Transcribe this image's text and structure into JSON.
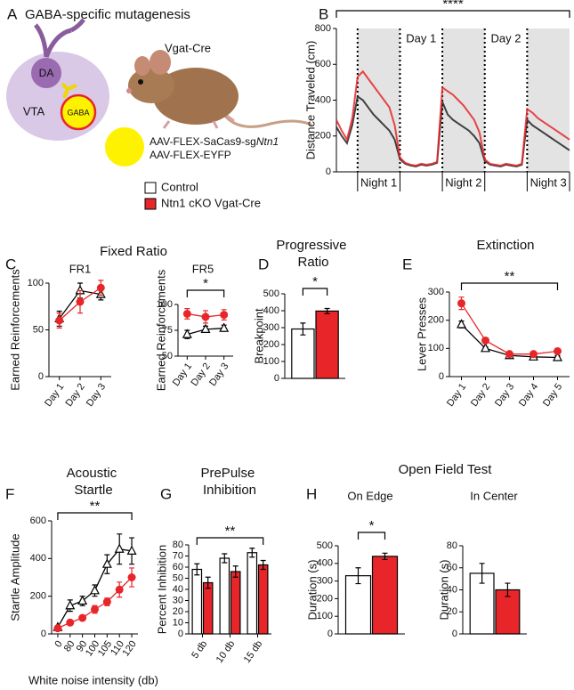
{
  "panel_labels": [
    "A",
    "B",
    "C",
    "D",
    "E",
    "F",
    "G",
    "H"
  ],
  "panel_a": {
    "title": "GABA-specific mutagenesis",
    "cell_1": "DA",
    "region": "VTA",
    "cell_2": "GABA",
    "mouse_line": "Vgat-Cre",
    "vector_1": "AAV-FLEX-SaCas9-sg",
    "vector_1_gene": "Ntn1",
    "vector_2": "AAV-FLEX-EYFP"
  },
  "chart_data": [
    {
      "type": "line",
      "ylabel": "Distance Traveled (cm)",
      "ylim": [
        0,
        800
      ],
      "yticks": [
        0,
        200,
        400,
        600,
        800
      ],
      "significance": "****",
      "periods": [
        {
          "label": "Night 1",
          "start": 4,
          "end": 12,
          "shaded": true
        },
        {
          "label": "Day 1",
          "start": 12,
          "end": 20,
          "shaded": false
        },
        {
          "label": "Night 2",
          "start": 20,
          "end": 28,
          "shaded": true
        },
        {
          "label": "Day 2",
          "start": 28,
          "end": 36,
          "shaded": false
        },
        {
          "label": "Night 3",
          "start": 36,
          "end": 44,
          "shaded": true
        }
      ],
      "series": [
        {
          "name": "Control",
          "color": "#222222",
          "fill": "#ffffff",
          "values": [
            250,
            200,
            160,
            260,
            420,
            400,
            360,
            320,
            290,
            260,
            230,
            180,
            70,
            45,
            35,
            30,
            40,
            35,
            40,
            50,
            390,
            320,
            290,
            270,
            250,
            230,
            200,
            160,
            60,
            40,
            35,
            30,
            40,
            35,
            30,
            40,
            290,
            260,
            240,
            220,
            200,
            180,
            160,
            140,
            120
          ]
        },
        {
          "name": "Ntn1 cKO Vgat-Cre",
          "color": "#e8262a",
          "fill": "#e8262a",
          "values": [
            290,
            230,
            180,
            300,
            530,
            560,
            520,
            480,
            440,
            400,
            360,
            260,
            80,
            50,
            40,
            35,
            45,
            40,
            45,
            55,
            470,
            450,
            430,
            400,
            370,
            330,
            290,
            220,
            70,
            45,
            40,
            35,
            45,
            40,
            35,
            45,
            350,
            330,
            300,
            280,
            260,
            240,
            220,
            200,
            180
          ]
        }
      ]
    },
    {
      "type": "line",
      "title": "Fixed Ratio",
      "subtitle": "FR1",
      "ylabel": "Earned Reinforcements",
      "categories": [
        "Day 1",
        "Day 2",
        "Day 3"
      ],
      "ylim": [
        0,
        100
      ],
      "yticks": [
        0,
        50,
        100
      ],
      "series": [
        {
          "color": "#000000",
          "fill": "#ffffff",
          "marker": "triangle",
          "values": [
            62,
            92,
            88
          ],
          "errors": [
            8,
            8,
            6
          ]
        },
        {
          "color": "#e8262a",
          "fill": "#e8262a",
          "marker": "circle",
          "values": [
            60,
            80,
            95
          ],
          "errors": [
            8,
            12,
            8
          ]
        }
      ]
    },
    {
      "type": "line",
      "subtitle": "FR5",
      "ylabel": "Earned Reinforcements",
      "categories": [
        "Day 1",
        "Day 2",
        "Day 3"
      ],
      "ylim": [
        50,
        100
      ],
      "yticks": [
        50,
        75,
        100
      ],
      "significance": "*",
      "series": [
        {
          "color": "#000000",
          "fill": "#ffffff",
          "marker": "triangle",
          "values": [
            71,
            76,
            77
          ],
          "errors": [
            4,
            3,
            3
          ]
        },
        {
          "color": "#e8262a",
          "fill": "#e8262a",
          "marker": "circle",
          "values": [
            91,
            88,
            90
          ],
          "errors": [
            5,
            6,
            5
          ]
        }
      ]
    },
    {
      "type": "bar",
      "title": "Progressive Ratio",
      "ylabel": "Breakpoint",
      "categories": [
        null
      ],
      "ylim": [
        0,
        500
      ],
      "yticks": [
        0,
        100,
        200,
        300,
        400,
        500
      ],
      "significance": "*",
      "series": [
        {
          "color": "#000000",
          "fill": "#ffffff",
          "values": [
            292
          ],
          "errors": [
            35
          ]
        },
        {
          "color": "#000000",
          "fill": "#e8262a",
          "values": [
            398
          ],
          "errors": [
            15
          ]
        }
      ]
    },
    {
      "type": "line",
      "title": "Extinction",
      "ylabel": "Lever Presses",
      "categories": [
        "Day 1",
        "Day 2",
        "Day 3",
        "Day 4",
        "Day 5"
      ],
      "ylim": [
        0,
        300
      ],
      "yticks": [
        0,
        100,
        200,
        300
      ],
      "significance": "**",
      "series": [
        {
          "color": "#000000",
          "fill": "#ffffff",
          "marker": "triangle",
          "values": [
            185,
            100,
            75,
            70,
            68
          ],
          "errors": [
            12,
            5,
            5,
            5,
            6
          ]
        },
        {
          "color": "#e8262a",
          "fill": "#e8262a",
          "marker": "circle",
          "values": [
            260,
            128,
            80,
            80,
            90
          ],
          "errors": [
            22,
            8,
            6,
            7,
            10
          ]
        }
      ]
    },
    {
      "type": "line",
      "title": "Acoustic Startle",
      "ylabel": "Startle Amplitude",
      "xlabel": "White noise intensity (db)",
      "categories": [
        "0",
        "80",
        "90",
        "100",
        "105",
        "110",
        "120"
      ],
      "ylim": [
        0,
        600
      ],
      "yticks": [
        0,
        200,
        400,
        600
      ],
      "significance": "**",
      "series": [
        {
          "color": "#000000",
          "fill": "#ffffff",
          "marker": "triangle",
          "values": [
            35,
            150,
            175,
            230,
            370,
            450,
            440
          ],
          "errors": [
            8,
            30,
            25,
            30,
            50,
            80,
            70
          ]
        },
        {
          "color": "#e8262a",
          "fill": "#e8262a",
          "marker": "circle",
          "values": [
            30,
            60,
            85,
            130,
            170,
            235,
            300
          ],
          "errors": [
            5,
            10,
            12,
            20,
            20,
            40,
            50
          ]
        }
      ]
    },
    {
      "type": "bar",
      "title": "PrePulse Inhibition",
      "ylabel": "Percent Inhibition",
      "categories": [
        "5 db",
        "10 db",
        "15 db"
      ],
      "ylim": [
        0,
        80
      ],
      "yticks": [
        0,
        10,
        20,
        30,
        40,
        50,
        60,
        70,
        80
      ],
      "significance": "**",
      "series": [
        {
          "color": "#000000",
          "fill": "#ffffff",
          "values": [
            58,
            68,
            73
          ],
          "errors": [
            5,
            4,
            4
          ]
        },
        {
          "color": "#000000",
          "fill": "#e8262a",
          "values": [
            46,
            56,
            62
          ],
          "errors": [
            5,
            5,
            4
          ]
        }
      ]
    },
    {
      "type": "bar",
      "title": "Open Field Test",
      "subtitle": "On Edge",
      "ylabel": "Duration (s)",
      "categories": [
        null
      ],
      "ylim": [
        0,
        500
      ],
      "yticks": [
        0,
        100,
        200,
        300,
        400,
        500
      ],
      "significance": "*",
      "series": [
        {
          "color": "#000000",
          "fill": "#ffffff",
          "values": [
            330
          ],
          "errors": [
            45
          ]
        },
        {
          "color": "#000000",
          "fill": "#e8262a",
          "values": [
            440
          ],
          "errors": [
            18
          ]
        }
      ]
    },
    {
      "type": "bar",
      "subtitle": "In Center",
      "ylabel": "Duration (s)",
      "categories": [
        null
      ],
      "ylim": [
        0,
        80
      ],
      "yticks": [
        0,
        20,
        40,
        60,
        80
      ],
      "series": [
        {
          "color": "#000000",
          "fill": "#ffffff",
          "values": [
            55
          ],
          "errors": [
            9
          ]
        },
        {
          "color": "#000000",
          "fill": "#e8262a",
          "values": [
            40
          ],
          "errors": [
            6
          ]
        }
      ]
    }
  ]
}
